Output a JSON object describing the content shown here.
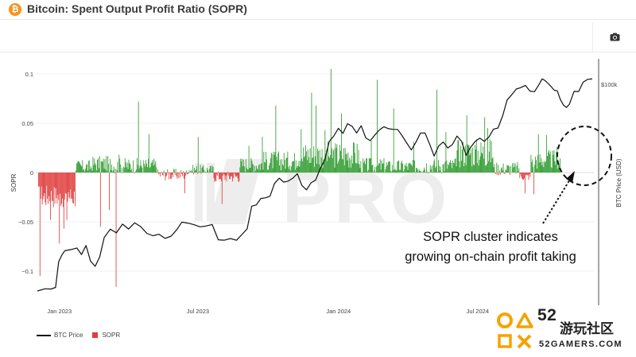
{
  "header": {
    "title": "Bitcoin: Spent Output Profit Ratio (SOPR)",
    "logo_glyph": "₿"
  },
  "toolbar": {
    "camera_icon": "camera-icon"
  },
  "annotation": {
    "line1": "SOPR cluster indicates",
    "line2": "growing on-chain profit taking"
  },
  "legend": {
    "btc_label": "BTC Price",
    "sopr_label": "SOPR"
  },
  "watermark": {
    "pro_text": "PRO"
  },
  "brand": {
    "logo_num": "52",
    "logo_cn": "游玩社区",
    "logo_site": "52GAMERS.COM"
  },
  "chart_data": {
    "type": "bar",
    "ylabel": "SOPR",
    "y2label": "BTC Price (USD)",
    "ylim": [
      -0.125,
      0.1125
    ],
    "yticks": [
      {
        "v": 0.1,
        "label": "0.1"
      },
      {
        "v": 0.05,
        "label": "0.05"
      },
      {
        "v": 0,
        "label": "0"
      },
      {
        "v": -0.05,
        "label": "−0.05"
      },
      {
        "v": -0.1,
        "label": "−0.1"
      }
    ],
    "y2_tick_label": "$100k",
    "xticks": [
      "Jan 2023",
      "Jul 2023",
      "Jan 2024",
      "Jul 2024"
    ],
    "colors": {
      "positive": "#2e9b2e",
      "negative": "#e03c3c",
      "price": "#111111"
    },
    "sopr_days": 700,
    "sopr_segments": [
      {
        "from": 0,
        "to": 50,
        "base": -0.024,
        "amp": 0.012
      },
      {
        "from": 50,
        "to": 72,
        "base": 0.006,
        "amp": 0.007
      },
      {
        "from": 72,
        "to": 100,
        "base": 0.009,
        "amp": 0.008
      },
      {
        "from": 100,
        "to": 160,
        "base": 0.007,
        "amp": 0.008
      },
      {
        "from": 160,
        "to": 200,
        "base": -0.002,
        "amp": 0.006
      },
      {
        "from": 200,
        "to": 235,
        "base": 0.003,
        "amp": 0.005
      },
      {
        "from": 235,
        "to": 270,
        "base": -0.004,
        "amp": 0.006
      },
      {
        "from": 270,
        "to": 300,
        "base": 0.008,
        "amp": 0.008
      },
      {
        "from": 300,
        "to": 345,
        "base": 0.012,
        "amp": 0.01
      },
      {
        "from": 345,
        "to": 430,
        "base": 0.018,
        "amp": 0.014
      },
      {
        "from": 430,
        "to": 470,
        "base": 0.007,
        "amp": 0.008
      },
      {
        "from": 470,
        "to": 520,
        "base": 0.006,
        "amp": 0.007
      },
      {
        "from": 520,
        "to": 560,
        "base": 0.007,
        "amp": 0.008
      },
      {
        "from": 560,
        "to": 610,
        "base": 0.02,
        "amp": 0.015
      },
      {
        "from": 610,
        "to": 645,
        "base": 0.004,
        "amp": 0.007
      },
      {
        "from": 645,
        "to": 660,
        "base": -0.004,
        "amp": 0.004
      },
      {
        "from": 660,
        "to": 700,
        "base": 0.013,
        "amp": 0.01
      }
    ],
    "sopr_spikes": [
      {
        "day": 2,
        "v": -0.105
      },
      {
        "day": 16,
        "v": -0.048
      },
      {
        "day": 28,
        "v": -0.072
      },
      {
        "day": 34,
        "v": -0.057
      },
      {
        "day": 38,
        "v": -0.048
      },
      {
        "day": 40,
        "v": -0.02
      },
      {
        "day": 83,
        "v": -0.055
      },
      {
        "day": 95,
        "v": -0.038
      },
      {
        "day": 104,
        "v": -0.116
      },
      {
        "day": 108,
        "v": 0.018
      },
      {
        "day": 134,
        "v": 0.072
      },
      {
        "day": 148,
        "v": 0.039
      },
      {
        "day": 196,
        "v": -0.021
      },
      {
        "day": 214,
        "v": 0.036
      },
      {
        "day": 246,
        "v": -0.032
      },
      {
        "day": 282,
        "v": 0.027
      },
      {
        "day": 300,
        "v": 0.036
      },
      {
        "day": 318,
        "v": 0.068
      },
      {
        "day": 352,
        "v": 0.044
      },
      {
        "day": 366,
        "v": 0.081
      },
      {
        "day": 372,
        "v": 0.068
      },
      {
        "day": 384,
        "v": 0.043
      },
      {
        "day": 392,
        "v": 0.105
      },
      {
        "day": 406,
        "v": 0.06
      },
      {
        "day": 446,
        "v": 0.032
      },
      {
        "day": 454,
        "v": 0.094
      },
      {
        "day": 476,
        "v": 0.065
      },
      {
        "day": 503,
        "v": 0.031
      },
      {
        "day": 534,
        "v": 0.084
      },
      {
        "day": 546,
        "v": 0.041
      },
      {
        "day": 574,
        "v": 0.058
      },
      {
        "day": 598,
        "v": 0.056
      },
      {
        "day": 602,
        "v": 0.045
      },
      {
        "day": 652,
        "v": -0.021
      },
      {
        "day": 664,
        "v": -0.022
      },
      {
        "day": 670,
        "v": 0.039
      },
      {
        "day": 681,
        "v": 0.038
      },
      {
        "day": 695,
        "v": 0.026
      }
    ],
    "btc_price_axis": [
      0,
      112000
    ],
    "btc_price": [
      [
        0,
        16600
      ],
      [
        10,
        16900
      ],
      [
        18,
        16800
      ],
      [
        24,
        17300
      ],
      [
        28,
        21500
      ],
      [
        32,
        22600
      ],
      [
        36,
        23400
      ],
      [
        44,
        23800
      ],
      [
        52,
        24200
      ],
      [
        58,
        22800
      ],
      [
        64,
        24500
      ],
      [
        70,
        21400
      ],
      [
        76,
        20500
      ],
      [
        82,
        22200
      ],
      [
        88,
        26500
      ],
      [
        96,
        28200
      ],
      [
        104,
        27800
      ],
      [
        112,
        29500
      ],
      [
        120,
        28300
      ],
      [
        128,
        30300
      ],
      [
        136,
        29000
      ],
      [
        144,
        27200
      ],
      [
        152,
        26800
      ],
      [
        160,
        27300
      ],
      [
        168,
        26100
      ],
      [
        176,
        27000
      ],
      [
        184,
        28400
      ],
      [
        190,
        30500
      ],
      [
        198,
        30200
      ],
      [
        206,
        29300
      ],
      [
        214,
        29100
      ],
      [
        222,
        29300
      ],
      [
        230,
        29300
      ],
      [
        238,
        26100
      ],
      [
        246,
        25900
      ],
      [
        254,
        26300
      ],
      [
        262,
        26000
      ],
      [
        270,
        27200
      ],
      [
        276,
        28500
      ],
      [
        282,
        34500
      ],
      [
        288,
        34800
      ],
      [
        294,
        37400
      ],
      [
        300,
        37100
      ],
      [
        306,
        37700
      ],
      [
        312,
        42000
      ],
      [
        318,
        44100
      ],
      [
        324,
        42800
      ],
      [
        330,
        43500
      ],
      [
        336,
        44700
      ],
      [
        342,
        46500
      ],
      [
        348,
        41500
      ],
      [
        354,
        40000
      ],
      [
        360,
        42300
      ],
      [
        366,
        43200
      ],
      [
        372,
        48000
      ],
      [
        378,
        52000
      ],
      [
        384,
        61000
      ],
      [
        390,
        63500
      ],
      [
        396,
        68500
      ],
      [
        402,
        66000
      ],
      [
        408,
        70500
      ],
      [
        414,
        69700
      ],
      [
        420,
        66000
      ],
      [
        426,
        70000
      ],
      [
        432,
        63500
      ],
      [
        438,
        61500
      ],
      [
        444,
        64000
      ],
      [
        450,
        67000
      ],
      [
        456,
        69500
      ],
      [
        462,
        67500
      ],
      [
        468,
        68000
      ],
      [
        474,
        67600
      ],
      [
        480,
        64500
      ],
      [
        486,
        60500
      ],
      [
        492,
        56500
      ],
      [
        498,
        60000
      ],
      [
        504,
        65000
      ],
      [
        510,
        66200
      ],
      [
        516,
        60000
      ],
      [
        522,
        54000
      ],
      [
        528,
        58500
      ],
      [
        534,
        61000
      ],
      [
        540,
        57500
      ],
      [
        546,
        59000
      ],
      [
        552,
        63500
      ],
      [
        558,
        61000
      ],
      [
        564,
        54500
      ],
      [
        570,
        58000
      ],
      [
        576,
        60500
      ],
      [
        582,
        63000
      ],
      [
        588,
        60800
      ],
      [
        594,
        64000
      ],
      [
        600,
        67500
      ],
      [
        606,
        69000
      ],
      [
        612,
        76000
      ],
      [
        618,
        88000
      ],
      [
        624,
        91500
      ],
      [
        630,
        97000
      ],
      [
        636,
        98000
      ],
      [
        642,
        100000
      ],
      [
        648,
        95000
      ],
      [
        654,
        94500
      ],
      [
        660,
        99500
      ],
      [
        664,
        105000
      ],
      [
        668,
        104500
      ],
      [
        672,
        102000
      ],
      [
        676,
        98000
      ],
      [
        680,
        96000
      ],
      [
        684,
        95000
      ],
      [
        688,
        87000
      ],
      [
        692,
        84500
      ],
      [
        696,
        82000
      ],
      [
        700,
        84800
      ],
      [
        706,
        94500
      ],
      [
        712,
        93500
      ],
      [
        718,
        103000
      ],
      [
        724,
        104000
      ],
      [
        730,
        106000
      ]
    ]
  }
}
